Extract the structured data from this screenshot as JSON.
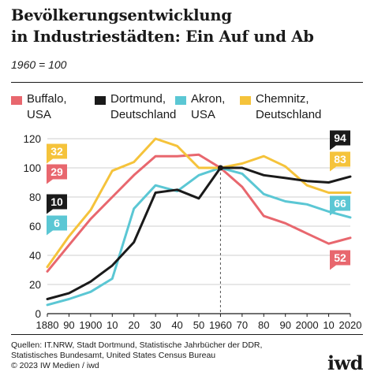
{
  "header": {
    "title_line1": "Bevölkerungsentwicklung",
    "title_line2": "in Industriestädten: Ein Auf und Ab",
    "subtitle": "1960 = 100"
  },
  "chart_data": {
    "type": "line",
    "title": "Bevölkerungsentwicklung in Industriestädten: Ein Auf und Ab",
    "subtitle": "1960 = 100",
    "x": [
      1880,
      1890,
      1900,
      1910,
      1920,
      1930,
      1940,
      1950,
      1960,
      1970,
      1980,
      1990,
      2000,
      2010,
      2020
    ],
    "x_tick_labels": [
      "1880",
      "90",
      "1900",
      "10",
      "20",
      "30",
      "40",
      "50",
      "1960",
      "70",
      "80",
      "90",
      "2000",
      "10",
      "2020"
    ],
    "ylim": [
      0,
      120
    ],
    "y_ticks": [
      0,
      20,
      40,
      60,
      80,
      100,
      120
    ],
    "grid": "horizontal",
    "reference_line": {
      "x": 1960,
      "y": 100
    },
    "series": [
      {
        "name": "Buffalo, USA",
        "color": "#e8676e",
        "x": [
          1880,
          1890,
          1900,
          1910,
          1920,
          1930,
          1940,
          1950,
          1960,
          1970,
          1980,
          1990,
          2000,
          2010,
          2015,
          2020
        ],
        "values": [
          29,
          47,
          65,
          80,
          95,
          108,
          108,
          109,
          100,
          87,
          67,
          62,
          55,
          48,
          50,
          52
        ],
        "start_label": "29",
        "end_label": "52"
      },
      {
        "name": "Dortmund, Deutschland",
        "color": "#1a1a1a",
        "x": [
          1880,
          1890,
          1900,
          1910,
          1920,
          1930,
          1940,
          1950,
          1960,
          1970,
          1980,
          1990,
          2000,
          2010,
          2020
        ],
        "values": [
          10,
          14,
          22,
          33,
          49,
          83,
          85,
          79,
          100,
          100,
          95,
          93,
          91,
          90,
          94
        ],
        "start_label": "10",
        "end_label": "94"
      },
      {
        "name": "Akron, USA",
        "color": "#5bc7d4",
        "x": [
          1880,
          1890,
          1900,
          1910,
          1920,
          1930,
          1940,
          1950,
          1960,
          1970,
          1980,
          1990,
          2000,
          2010,
          2015,
          2020
        ],
        "values": [
          6,
          10,
          15,
          24,
          72,
          88,
          84,
          95,
          100,
          96,
          82,
          77,
          75,
          70,
          68,
          66
        ],
        "start_label": "6",
        "end_label": "66"
      },
      {
        "name": "Chemnitz, Deutschland",
        "color": "#f5c33b",
        "x": [
          1880,
          1890,
          1900,
          1910,
          1920,
          1930,
          1940,
          1950,
          1960,
          1970,
          1980,
          1990,
          2000,
          2010,
          2020
        ],
        "values": [
          32,
          53,
          71,
          98,
          104,
          120,
          115,
          100,
          100,
          103,
          108,
          101,
          88,
          83,
          83
        ],
        "start_label": "32",
        "end_label": "83"
      }
    ]
  },
  "legend": [
    {
      "name": "Buffalo,\nUSA",
      "color": "#e8676e"
    },
    {
      "name": "Dortmund,\nDeutschland",
      "color": "#1a1a1a"
    },
    {
      "name": "Akron,\nUSA",
      "color": "#5bc7d4"
    },
    {
      "name": "Chemnitz,\nDeutschland",
      "color": "#f5c33b"
    }
  ],
  "footer": {
    "sources": "Quellen: IT.NRW, Stadt Dortmund, Statistische Jahrbücher der DDR,\nStatistisches Bundesamt, United States Census Bureau\n© 2023 IW Medien / iwd",
    "logo": "iwd"
  }
}
